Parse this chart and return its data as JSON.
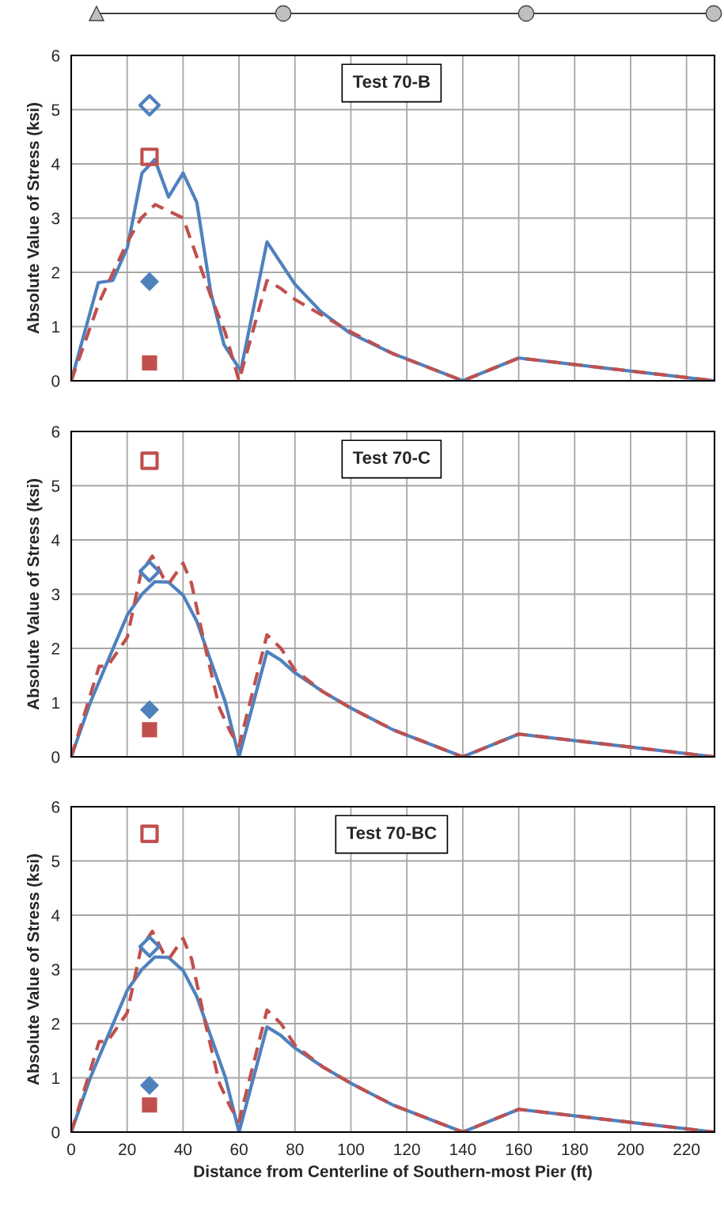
{
  "chart_data": [
    {
      "type": "line",
      "title": "Test 70-B",
      "ylabel": "Absolute Value of Stress (ksi)",
      "xlim": [
        0,
        230
      ],
      "xticks": [
        0,
        20,
        40,
        60,
        80,
        100,
        120,
        140,
        160,
        180,
        200,
        220
      ],
      "ylim": [
        0,
        6
      ],
      "yticks": [
        0,
        1,
        2,
        3,
        4,
        5,
        6
      ],
      "grid": true,
      "legend": false,
      "tick_labels": "y",
      "series": [
        {
          "type": "line",
          "color": "#4f81bd",
          "line_style": "solid",
          "marker": "none",
          "x": [
            0,
            9.7,
            14.9,
            20.1,
            25.3,
            29.9,
            34.8,
            40,
            44.9,
            49.9,
            54.6,
            60.6,
            70,
            80,
            89.2,
            99.7,
            114.6,
            140,
            160,
            230
          ],
          "values": [
            0,
            1.81,
            1.85,
            2.46,
            3.83,
            4.08,
            3.39,
            3.83,
            3.29,
            1.63,
            0.67,
            0.18,
            2.56,
            1.78,
            1.28,
            0.88,
            0.51,
            0,
            0.42,
            0
          ]
        },
        {
          "type": "line",
          "color": "#c0504d",
          "line_style": "dashed",
          "marker": "none",
          "x": [
            0,
            10,
            20,
            25,
            30,
            40,
            50,
            55,
            60,
            70,
            75,
            80,
            90,
            100,
            115,
            140,
            160,
            230
          ],
          "values": [
            0,
            1.45,
            2.55,
            3.0,
            3.25,
            3.0,
            1.55,
            0.9,
            0,
            1.85,
            1.7,
            1.5,
            1.2,
            0.9,
            0.5,
            0,
            0.42,
            0
          ]
        },
        {
          "type": "scatter",
          "color": "#4f81bd",
          "marker": "diamond",
          "x": [
            28
          ],
          "values": [
            5.08
          ]
        },
        {
          "type": "scatter",
          "color": "#c0504d",
          "marker": "square",
          "x": [
            28
          ],
          "values": [
            4.13
          ]
        },
        {
          "type": "scatter",
          "color": "#4f81bd",
          "marker": "diamond",
          "x": [
            28
          ],
          "values": [
            1.83
          ]
        },
        {
          "type": "scatter",
          "color": "#c0504d",
          "marker": "square",
          "x": [
            28
          ],
          "values": [
            0.33
          ]
        }
      ]
    },
    {
      "type": "line",
      "title": "Test 70-C",
      "ylabel": "Absolute Value of Stress (ksi)",
      "xlim": [
        0,
        230
      ],
      "xticks": [
        0,
        20,
        40,
        60,
        80,
        100,
        120,
        140,
        160,
        180,
        200,
        220
      ],
      "ylim": [
        0,
        6
      ],
      "yticks": [
        0,
        1,
        2,
        3,
        4,
        5,
        6
      ],
      "grid": true,
      "legend": false,
      "tick_labels": "y",
      "series": [
        {
          "type": "line",
          "color": "#4f81bd",
          "line_style": "solid",
          "marker": "none",
          "x": [
            0,
            6.9,
            14.5,
            20.1,
            25.3,
            29.9,
            34.8,
            40,
            44.9,
            49.4,
            55.1,
            60,
            70,
            75,
            80,
            90,
            100,
            115,
            140,
            160,
            230
          ],
          "values": [
            0,
            1.01,
            1.94,
            2.62,
            3.0,
            3.23,
            3.22,
            2.98,
            2.5,
            1.84,
            1.01,
            0,
            1.94,
            1.78,
            1.55,
            1.2,
            0.9,
            0.5,
            0,
            0.42,
            0
          ]
        },
        {
          "type": "line",
          "color": "#c0504d",
          "line_style": "dashed",
          "marker": "none",
          "x": [
            0,
            10,
            13,
            20,
            25,
            29,
            33,
            35,
            40,
            43,
            48,
            53,
            57,
            60,
            70,
            75,
            80,
            90,
            100,
            115,
            140,
            160,
            230
          ],
          "values": [
            0,
            1.67,
            1.67,
            2.2,
            3.4,
            3.7,
            3.3,
            3.2,
            3.57,
            3.2,
            2.0,
            0.9,
            0.45,
            0.2,
            2.25,
            2.0,
            1.6,
            1.2,
            0.9,
            0.5,
            0,
            0.42,
            0
          ]
        },
        {
          "type": "scatter",
          "color": "#c0504d",
          "marker": "square",
          "x": [
            28
          ],
          "values": [
            5.46
          ]
        },
        {
          "type": "scatter",
          "color": "#4f81bd",
          "marker": "diamond",
          "x": [
            28
          ],
          "values": [
            3.42
          ]
        },
        {
          "type": "scatter",
          "color": "#4f81bd",
          "marker": "diamond",
          "x": [
            28
          ],
          "values": [
            0.87
          ]
        },
        {
          "type": "scatter",
          "color": "#c0504d",
          "marker": "square",
          "x": [
            28
          ],
          "values": [
            0.5
          ]
        }
      ]
    },
    {
      "type": "line",
      "title": "Test 70-BC",
      "ylabel": "Absolute Value of Stress (ksi)",
      "xlabel": "Distance from Centerline of Southern-most Pier (ft)",
      "xlim": [
        0,
        230
      ],
      "xticks": [
        0,
        20,
        40,
        60,
        80,
        100,
        120,
        140,
        160,
        180,
        200,
        220
      ],
      "ylim": [
        0,
        6
      ],
      "yticks": [
        0,
        1,
        2,
        3,
        4,
        5,
        6
      ],
      "grid": true,
      "legend": false,
      "series": [
        {
          "type": "line",
          "color": "#4f81bd",
          "line_style": "solid",
          "marker": "none",
          "x": [
            0,
            6.9,
            14.5,
            20.1,
            25.3,
            29.9,
            34.8,
            40,
            44.9,
            49.4,
            55.1,
            60,
            70,
            75,
            80,
            90,
            100,
            115,
            140,
            160,
            230
          ],
          "values": [
            0,
            1.01,
            1.94,
            2.62,
            3.0,
            3.23,
            3.22,
            2.98,
            2.5,
            1.84,
            1.01,
            0,
            1.94,
            1.78,
            1.55,
            1.2,
            0.9,
            0.5,
            0,
            0.42,
            0
          ]
        },
        {
          "type": "line",
          "color": "#c0504d",
          "line_style": "dashed",
          "marker": "none",
          "x": [
            0,
            10,
            13,
            20,
            25,
            29,
            33,
            35,
            40,
            43,
            48,
            53,
            57,
            60,
            70,
            75,
            80,
            90,
            100,
            115,
            140,
            160,
            230
          ],
          "values": [
            0,
            1.67,
            1.67,
            2.2,
            3.4,
            3.7,
            3.3,
            3.2,
            3.57,
            3.2,
            2.0,
            0.9,
            0.45,
            0.2,
            2.25,
            2.0,
            1.6,
            1.2,
            0.9,
            0.5,
            0,
            0.42,
            0
          ]
        },
        {
          "type": "scatter",
          "color": "#c0504d",
          "marker": "square",
          "x": [
            28
          ],
          "values": [
            5.5
          ]
        },
        {
          "type": "scatter",
          "color": "#4f81bd",
          "marker": "diamond",
          "x": [
            28
          ],
          "values": [
            3.42
          ]
        },
        {
          "type": "scatter",
          "color": "#4f81bd",
          "marker": "diamond",
          "x": [
            28
          ],
          "values": [
            0.86
          ]
        },
        {
          "type": "scatter",
          "color": "#c0504d",
          "marker": "square",
          "x": [
            28
          ],
          "values": [
            0.5
          ]
        }
      ]
    }
  ]
}
